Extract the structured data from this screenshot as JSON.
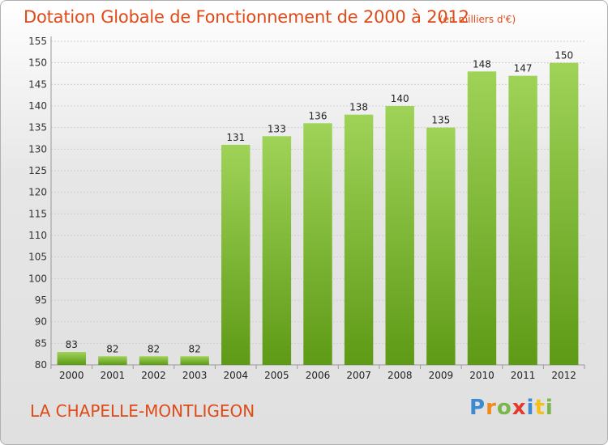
{
  "header": {
    "title": "Dotation Globale de Fonctionnement de 2000 à 2012",
    "unit": "(en milliers d'€)"
  },
  "footer": {
    "commune": "LA CHAPELLE-MONTLIGEON",
    "logo": "Proxiti"
  },
  "colors": {
    "bar_light": "#9fd358",
    "bar_dark": "#5e9a16",
    "title": "#e04a18"
  },
  "chart_data": {
    "type": "bar",
    "title": "Dotation Globale de Fonctionnement de 2000 à 2012",
    "subtitle": "(en milliers d'€)",
    "xlabel": "",
    "ylabel": "",
    "categories": [
      "2000",
      "2001",
      "2002",
      "2003",
      "2004",
      "2005",
      "2006",
      "2007",
      "2008",
      "2009",
      "2010",
      "2011",
      "2012"
    ],
    "values": [
      83,
      82,
      82,
      82,
      131,
      133,
      136,
      138,
      140,
      135,
      148,
      147,
      150
    ],
    "ylim": [
      80,
      155
    ],
    "yticks": [
      80,
      85,
      90,
      95,
      100,
      105,
      110,
      115,
      120,
      125,
      130,
      135,
      140,
      145,
      150,
      155
    ],
    "grid": true,
    "legend": "none"
  }
}
